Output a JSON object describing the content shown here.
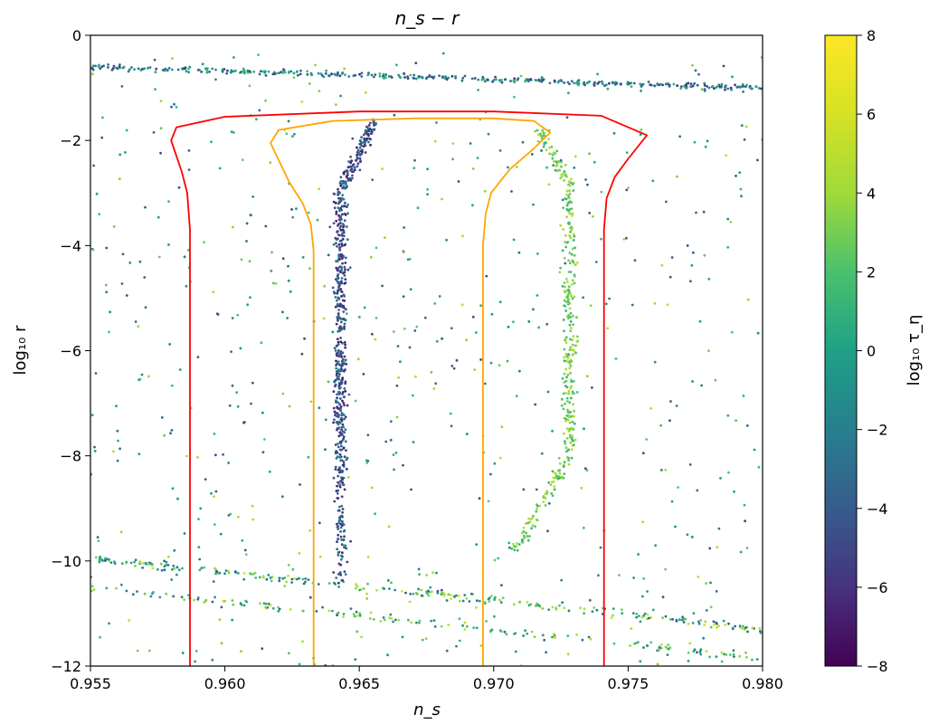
{
  "chart_data": {
    "type": "scatter",
    "title": "n_s − r",
    "xlabel": "n_s",
    "ylabel": "log₁₀ r",
    "xlim": [
      0.955,
      0.98
    ],
    "ylim": [
      -12,
      0
    ],
    "xticks": [
      0.955,
      0.96,
      0.965,
      0.97,
      0.975,
      0.98
    ],
    "xtick_labels": [
      "0.955",
      "0.960",
      "0.965",
      "0.970",
      "0.975",
      "0.980"
    ],
    "yticks": [
      0,
      -2,
      -4,
      -6,
      -8,
      -10,
      -12
    ],
    "ytick_labels": [
      "0",
      "−2",
      "−4",
      "−6",
      "−8",
      "−10",
      "−12"
    ],
    "grid": false,
    "colorbar": {
      "label": "log₁₀ τ_η",
      "range": [
        -8,
        8
      ],
      "ticks": [
        8,
        6,
        4,
        2,
        0,
        -2,
        -4,
        -6,
        -8
      ],
      "tick_labels": [
        "8",
        "6",
        "4",
        "2",
        "0",
        "−2",
        "−4",
        "−6",
        "−8"
      ],
      "colormap": "viridis"
    },
    "series": [
      {
        "kind": "contour",
        "color": "#ff0000",
        "x": [
          0.9587,
          0.9587,
          0.9586,
          0.9584,
          0.9582,
          0.958,
          0.9582,
          0.96,
          0.965,
          0.97,
          0.974,
          0.9757,
          0.975,
          0.9745,
          0.9742,
          0.9741,
          0.9741
        ],
        "y": [
          -12,
          -3.7,
          -3.0,
          -2.6,
          -2.3,
          -2.0,
          -1.75,
          -1.55,
          -1.45,
          -1.45,
          -1.53,
          -1.9,
          -2.35,
          -2.7,
          -3.1,
          -3.7,
          -12
        ]
      },
      {
        "kind": "contour",
        "color": "#ffa500",
        "x": [
          0.9633,
          0.9633,
          0.9632,
          0.9629,
          0.9624,
          0.9617,
          0.962,
          0.964,
          0.967,
          0.97,
          0.9715,
          0.9721,
          0.9715,
          0.9706,
          0.9699,
          0.9697,
          0.9696,
          0.9696
        ],
        "y": [
          -12,
          -4.1,
          -3.6,
          -3.2,
          -2.8,
          -2.05,
          -1.8,
          -1.63,
          -1.58,
          -1.58,
          -1.63,
          -1.85,
          -2.15,
          -2.55,
          -3.0,
          -3.4,
          -4.0,
          -12
        ]
      }
    ],
    "point_groups": [
      {
        "name": "upper band",
        "x_range": [
          0.955,
          0.98
        ],
        "y_at_xmin": -0.6,
        "y_at_xmax": -1.0,
        "color_value_range": [
          -6,
          2
        ],
        "count": 380
      },
      {
        "name": "lower band",
        "x_range": [
          0.955,
          0.98
        ],
        "y_at_xmin": -9.95,
        "y_at_xmax": -11.3,
        "color_value_range": [
          -4,
          6
        ],
        "count": 420
      },
      {
        "name": "vertical column",
        "x_center": 0.9643,
        "y_range": [
          -10.6,
          -1.6
        ],
        "color_value_range": [
          -7,
          -2
        ],
        "count": 620
      },
      {
        "name": "right arc",
        "x_center": 0.9728,
        "y_range": [
          -9.8,
          -1.8
        ],
        "color_value_range": [
          1,
          5
        ],
        "count": 380
      },
      {
        "name": "scattered background",
        "x_range": [
          0.955,
          0.98
        ],
        "y_range": [
          -12,
          -0.3
        ],
        "color_value_range": [
          -5,
          5
        ],
        "count": 620
      }
    ]
  }
}
